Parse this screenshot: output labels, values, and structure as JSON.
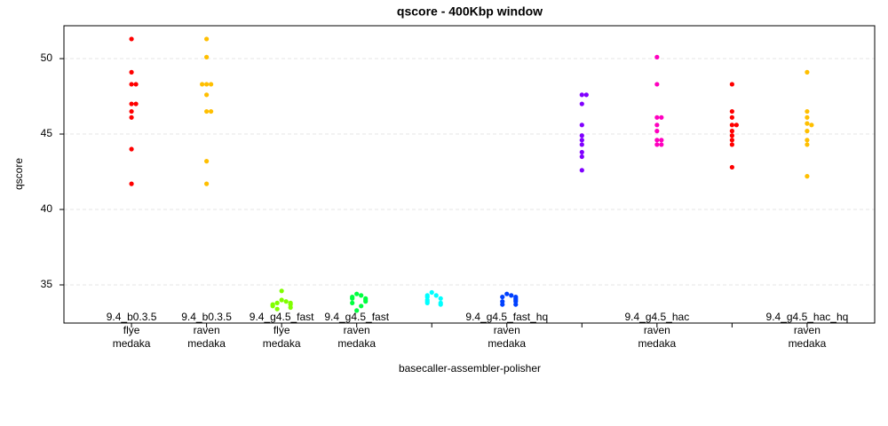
{
  "chart_data": {
    "type": "strip",
    "title": "qscore - 400Kbp window",
    "x_label": "basecaller-assembler-polisher",
    "y_label": "qscore",
    "categories": [
      [
        "9.4_b0.3.5",
        "flye",
        "medaka"
      ],
      [
        "9.4_b0.3.5",
        "raven",
        "medaka"
      ],
      [
        "9.4_g4.5_fast",
        "flye",
        "medaka"
      ],
      [
        "9.4_g4.5_fast",
        "raven",
        "medaka"
      ],
      null,
      [
        "9.4_g4.5_fast_hq",
        "raven",
        "medaka"
      ],
      null,
      [
        "9.4_g4.5_hac",
        "raven",
        "medaka"
      ],
      null,
      [
        "9.4_g4.5_hac_hq",
        "raven",
        "medaka"
      ]
    ],
    "colors": [
      "#ff0000",
      "#ffbf00",
      "#80ff00",
      "#00ff40",
      "#00ffff",
      "#0040ff",
      "#8000ff",
      "#ff00bf",
      "#ff0000",
      "#ffbf00"
    ],
    "values": [
      [
        51.3,
        49.1,
        48.3,
        48.3,
        47.0,
        47.0,
        46.5,
        46.1,
        44.0,
        41.7
      ],
      [
        51.3,
        50.1,
        48.3,
        48.3,
        48.3,
        47.6,
        46.5,
        46.5,
        43.2,
        41.7
      ],
      [
        34.6,
        34.0,
        33.9,
        33.8,
        33.8,
        33.7,
        33.7,
        33.6,
        33.5,
        33.4
      ],
      [
        34.4,
        34.3,
        34.2,
        34.1,
        34.1,
        34.0,
        33.9,
        33.8,
        33.6,
        33.3
      ],
      [
        34.5,
        34.3,
        34.3,
        34.2,
        34.1,
        34.0,
        33.9,
        33.8,
        33.8,
        33.7
      ],
      [
        34.4,
        34.3,
        34.2,
        34.2,
        34.1,
        34.0,
        33.9,
        33.9,
        33.7,
        33.7
      ],
      [
        47.6,
        47.6,
        47.0,
        45.6,
        44.9,
        44.6,
        44.3,
        43.8,
        43.5,
        42.6
      ],
      [
        50.1,
        48.3,
        46.1,
        46.1,
        45.6,
        45.2,
        44.6,
        44.6,
        44.3,
        44.3
      ],
      [
        48.3,
        46.5,
        46.1,
        45.6,
        45.6,
        45.2,
        44.9,
        44.6,
        44.3,
        42.8
      ],
      [
        49.1,
        46.5,
        46.1,
        45.7,
        45.6,
        45.2,
        44.6,
        44.3,
        42.2
      ]
    ],
    "ylim": [
      32.47,
      52.18
    ],
    "yticks": [
      35,
      40,
      45,
      50
    ],
    "grid": true
  }
}
